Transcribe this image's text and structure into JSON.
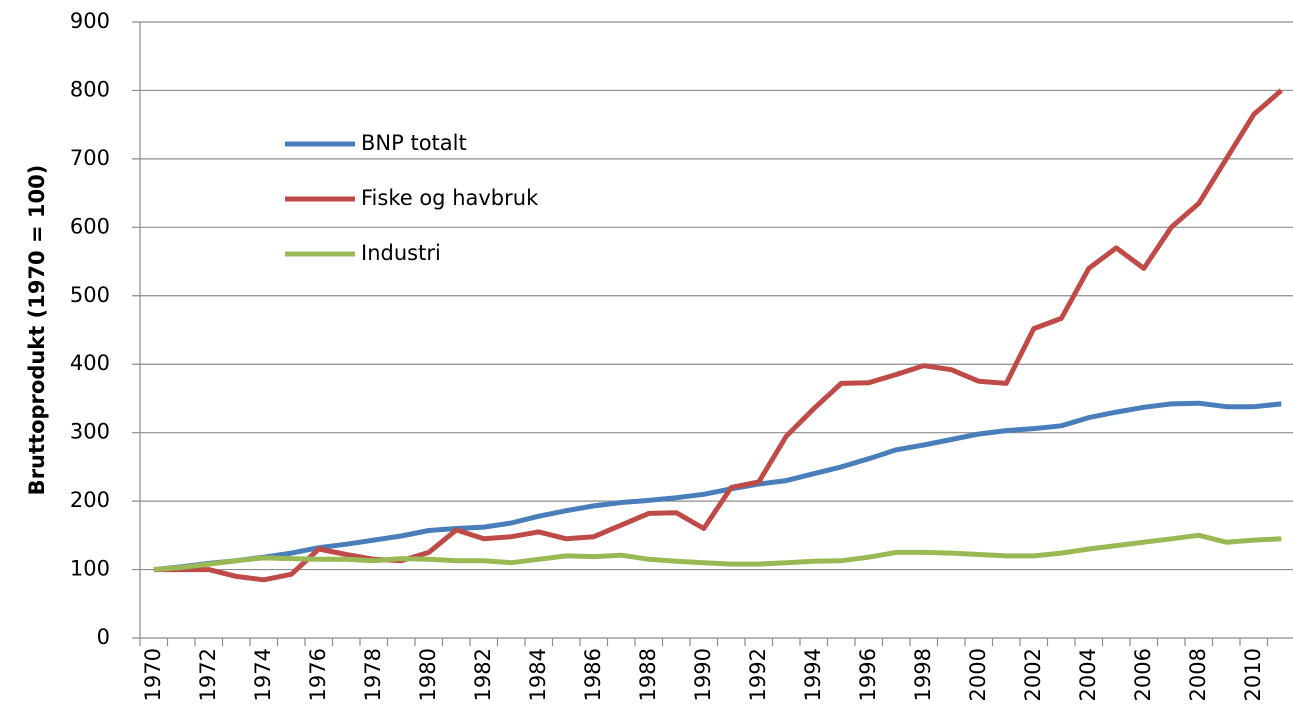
{
  "chart_data": {
    "type": "line",
    "y_label": "Bruttoprodukt (1970 = 100)",
    "categories": [
      "1970",
      null,
      "1972",
      null,
      "1974",
      null,
      "1976",
      null,
      "1978",
      null,
      "1980",
      null,
      "1982",
      null,
      "1984",
      null,
      "1986",
      null,
      "1988",
      null,
      "1990",
      null,
      "1992",
      null,
      "1994",
      null,
      "1996",
      null,
      "1998",
      null,
      "2000",
      null,
      "2002",
      null,
      "2004",
      null,
      "2006",
      null,
      "2008",
      null,
      "2010",
      null
    ],
    "series": [
      {
        "name": "BNP totalt",
        "color": "#4a7ebb",
        "values": [
          100,
          104,
          109,
          113,
          118,
          124,
          132,
          137,
          143,
          149,
          157,
          160,
          162,
          168,
          178,
          186,
          193,
          198,
          201,
          205,
          210,
          218,
          225,
          230,
          240,
          250,
          262,
          275,
          282,
          290,
          298,
          303,
          306,
          310,
          322,
          330,
          337,
          342,
          343,
          338,
          338,
          342
        ]
      },
      {
        "name": "Fiske og havbruk",
        "color": "#be4b48",
        "values": [
          100,
          100,
          100,
          90,
          85,
          93,
          130,
          122,
          115,
          113,
          125,
          158,
          145,
          148,
          155,
          145,
          148,
          165,
          182,
          183,
          160,
          220,
          228,
          295,
          335,
          372,
          373,
          385,
          398,
          392,
          375,
          372,
          452,
          467,
          540,
          570,
          540,
          600,
          635,
          700,
          765,
          800
        ]
      },
      {
        "name": "Industri",
        "color": "#98b954",
        "values": [
          100,
          103,
          108,
          113,
          117,
          116,
          115,
          115,
          113,
          116,
          115,
          113,
          113,
          110,
          115,
          120,
          119,
          121,
          115,
          112,
          110,
          108,
          108,
          110,
          112,
          113,
          118,
          125,
          125,
          124,
          122,
          120,
          120,
          124,
          130,
          135,
          140,
          145,
          150,
          140,
          143,
          145
        ]
      }
    ],
    "ylim": [
      0,
      900
    ],
    "yticks": [
      0,
      100,
      200,
      300,
      400,
      500,
      600,
      700,
      800,
      900
    ],
    "grid": true,
    "legend": "upper left"
  }
}
